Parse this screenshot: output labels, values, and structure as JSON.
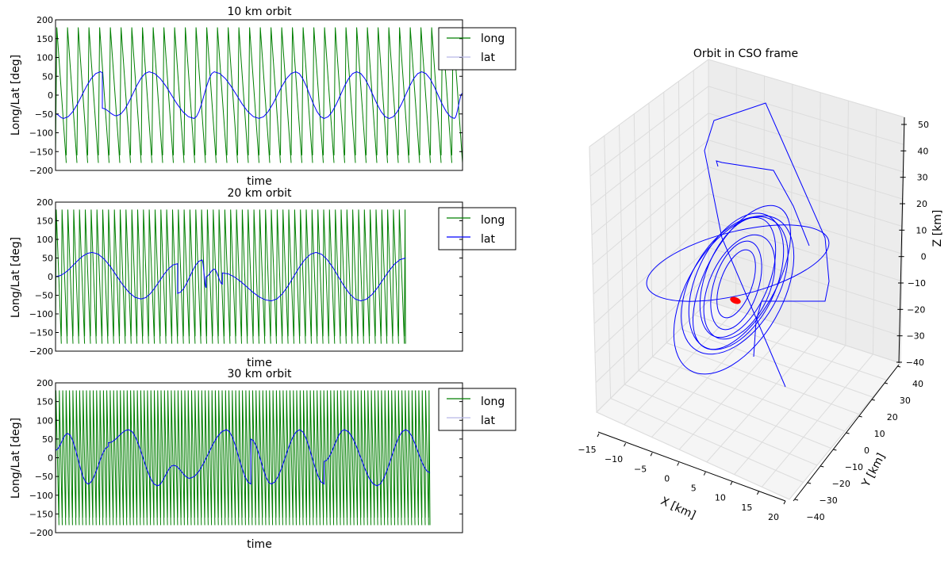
{
  "chart_data": [
    {
      "type": "line",
      "title": "10 km orbit",
      "xlabel": "time",
      "ylabel": "Long/Lat [deg]",
      "ylim": [
        -200,
        200
      ],
      "yticks": [
        "200",
        "150",
        "100",
        "50",
        "0",
        "−50",
        "−100",
        "−150",
        "−200"
      ],
      "legend": {
        "placement": "top-right",
        "entries": [
          "long",
          "lat"
        ]
      },
      "series": [
        {
          "name": "long",
          "color": "#007f00",
          "pattern": "sawtooth",
          "range": [
            -180,
            180
          ],
          "cycles": 38,
          "t_end": 1.0
        },
        {
          "name": "lat",
          "color": "#0000ff",
          "t": [
            0,
            0.02,
            0.11,
            0.115,
            0.115,
            0.15,
            0.23,
            0.34,
            0.39,
            0.5,
            0.59,
            0.66,
            0.74,
            0.82,
            0.9,
            0.98,
            1.0
          ],
          "values": [
            -50,
            -62,
            62,
            60,
            -35,
            -55,
            62,
            -62,
            62,
            -62,
            62,
            -62,
            62,
            -62,
            62,
            -62,
            5
          ]
        }
      ]
    },
    {
      "type": "line",
      "title": "20 km orbit",
      "xlabel": "time",
      "ylabel": "Long/Lat [deg]",
      "ylim": [
        -200,
        200
      ],
      "yticks": [
        "200",
        "150",
        "100",
        "50",
        "0",
        "−50",
        "−100",
        "−150",
        "−200"
      ],
      "legend": {
        "placement": "top-right",
        "entries": [
          "long",
          "lat"
        ]
      },
      "series": [
        {
          "name": "long",
          "color": "#007f00",
          "pattern": "sawtooth",
          "range": [
            -180,
            180
          ],
          "cycles": 70,
          "t_end": 0.86
        },
        {
          "name": "lat",
          "color": "#0000ff",
          "t": [
            0,
            0.09,
            0.21,
            0.3,
            0.3,
            0.36,
            0.37,
            0.37,
            0.39,
            0.41,
            0.41,
            0.41,
            0.53,
            0.64,
            0.75,
            0.86
          ],
          "values": [
            0,
            65,
            -60,
            35,
            -45,
            45,
            -30,
            0,
            20,
            -20,
            0,
            10,
            -65,
            65,
            -65,
            50
          ]
        }
      ]
    },
    {
      "type": "line",
      "title": "30 km orbit",
      "xlabel": "time",
      "ylabel": "Long/Lat [deg]",
      "ylim": [
        -200,
        200
      ],
      "yticks": [
        "200",
        "150",
        "100",
        "50",
        "0",
        "−50",
        "−100",
        "−150",
        "−200"
      ],
      "legend": {
        "placement": "top-right",
        "entries": [
          "long",
          "lat"
        ]
      },
      "series": [
        {
          "name": "long",
          "color": "#007f00",
          "pattern": "sawtooth",
          "range": [
            -180,
            180
          ],
          "cycles": 120,
          "t_end": 0.92
        },
        {
          "name": "lat",
          "color": "#0000ff",
          "t": [
            0,
            0.03,
            0.08,
            0.13,
            0.13,
            0.18,
            0.25,
            0.29,
            0.33,
            0.42,
            0.48,
            0.48,
            0.53,
            0.6,
            0.66,
            0.66,
            0.71,
            0.79,
            0.86,
            0.92
          ],
          "values": [
            20,
            65,
            -70,
            30,
            40,
            75,
            -75,
            -20,
            -55,
            75,
            -70,
            50,
            -70,
            75,
            -70,
            -10,
            75,
            -75,
            75,
            -40
          ]
        }
      ]
    },
    {
      "type": "line3d",
      "title": "Orbit in CSO frame",
      "xlabel": "X [km]",
      "ylabel": "Y [km]",
      "zlabel": "Z [km]",
      "xlim": [
        -15,
        20
      ],
      "ylim": [
        -40,
        40
      ],
      "zlim": [
        -40,
        50
      ],
      "xticks": [
        "−15",
        "−10",
        "−5",
        "0",
        "5",
        "10",
        "15",
        "20"
      ],
      "yticks": [
        "−40",
        "−30",
        "−20",
        "−10",
        "0",
        "10",
        "20",
        "30",
        "40"
      ],
      "zticks": [
        "−40",
        "−30",
        "−20",
        "−10",
        "0",
        "10",
        "20",
        "30",
        "40",
        "50"
      ],
      "grid": true,
      "series": [
        {
          "name": "orbit",
          "color": "#0000ff"
        },
        {
          "name": "body",
          "color": "#ff0000"
        }
      ]
    }
  ]
}
